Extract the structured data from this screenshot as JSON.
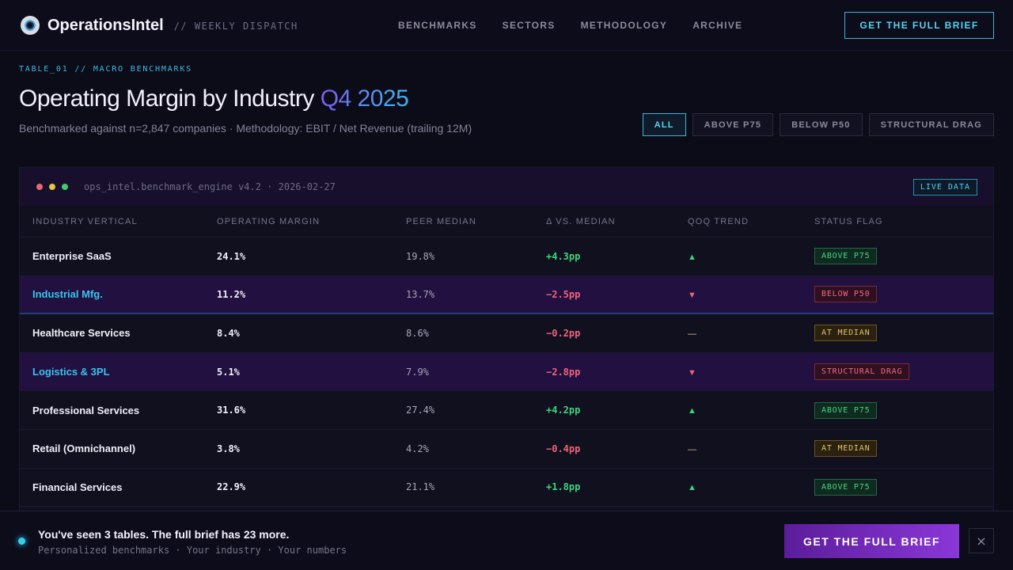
{
  "header": {
    "brand": "OperationsIntel",
    "tagline": "// WEEKLY DISPATCH",
    "nav": [
      "BENCHMARKS",
      "SECTORS",
      "METHODOLOGY",
      "ARCHIVE"
    ],
    "cta": "GET THE FULL BRIEF"
  },
  "hero": {
    "eyebrow": "TABLE_01 // MACRO BENCHMARKS",
    "title": "Operating Margin by Industry",
    "title_accent": "Q4 2025",
    "subtitle": "Benchmarked against n=2,847 companies · Methodology: EBIT / Net Revenue (trailing 12M)",
    "filters": [
      "ALL",
      "ABOVE P75",
      "BELOW P50",
      "STRUCTURAL DRAG"
    ],
    "active_filter": "ALL"
  },
  "panel": {
    "engine": "ops_intel.benchmark_engine v4.2 · 2026-02-27",
    "live_badge": "LIVE DATA",
    "dot_colors": [
      "#e56b6b",
      "#e3c547",
      "#42c971"
    ],
    "columns": [
      "INDUSTRY VERTICAL",
      "OPERATING MARGIN",
      "PEER MEDIAN",
      "Δ VS. MEDIAN",
      "QOQ TREND",
      "STATUS FLAG"
    ],
    "rows": [
      {
        "industry": "Enterprise SaaS",
        "margin": "24.1%",
        "median": "19.8%",
        "delta": "+4.3pp",
        "trend": "▲",
        "status": "ABOVE P75"
      },
      {
        "industry": "Industrial Mfg.",
        "margin": "11.2%",
        "median": "13.7%",
        "delta": "−2.5pp",
        "trend": "▼",
        "status": "BELOW P50"
      },
      {
        "industry": "Healthcare Services",
        "margin": "8.4%",
        "median": "8.6%",
        "delta": "−0.2pp",
        "trend": "—",
        "status": "AT MEDIAN"
      },
      {
        "industry": "Logistics & 3PL",
        "margin": "5.1%",
        "median": "7.9%",
        "delta": "−2.8pp",
        "trend": "▼",
        "status": "STRUCTURAL DRAG"
      },
      {
        "industry": "Professional Services",
        "margin": "31.6%",
        "median": "27.4%",
        "delta": "+4.2pp",
        "trend": "▲",
        "status": "ABOVE P75"
      },
      {
        "industry": "Retail (Omnichannel)",
        "margin": "3.8%",
        "median": "4.2%",
        "delta": "−0.4pp",
        "trend": "—",
        "status": "AT MEDIAN"
      },
      {
        "industry": "Financial Services",
        "margin": "22.9%",
        "median": "21.1%",
        "delta": "+1.8pp",
        "trend": "▲",
        "status": "ABOVE P75"
      }
    ]
  },
  "banner": {
    "title": "You've seen 3 tables. The full brief has 23 more.",
    "subtitle": "Personalized benchmarks · Your industry · Your numbers",
    "cta": "GET THE FULL BRIEF",
    "close": "×"
  }
}
